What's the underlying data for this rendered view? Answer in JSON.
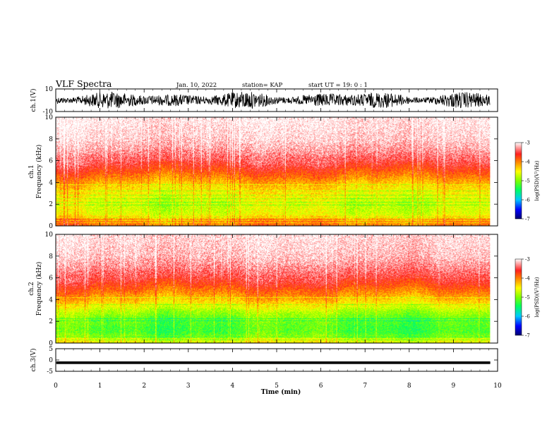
{
  "header": {
    "title": "VLF Spectra",
    "date": "Jan. 10, 2022",
    "station": "station= KAP",
    "start": "start  UT =   19: 0  : 1"
  },
  "chart_data": {
    "type": "heatmap",
    "x_axis": {
      "label": "Time  (min)",
      "range": [
        0,
        10
      ],
      "ticks": [
        0,
        1,
        2,
        3,
        4,
        5,
        6,
        7,
        8,
        9,
        10
      ],
      "data_end": 9.83
    },
    "panels": [
      {
        "id": "ch1_waveform",
        "type": "line",
        "ylabel": "ch.1(V)",
        "ylim": [
          -10,
          10
        ],
        "yticks": [
          10,
          -10
        ]
      },
      {
        "id": "ch1_spectrogram",
        "type": "heatmap",
        "title": "ch.1",
        "ylabel": "Frequency  (kHz)",
        "ylim": [
          0,
          10
        ],
        "yticks": [
          0,
          2,
          4,
          6,
          8,
          10
        ],
        "colorbar": {
          "label": "log(PSD)(V²/Hz)",
          "range": [
            -7,
            -3
          ],
          "ticks": [
            -3,
            -4,
            -5,
            -6,
            -7
          ]
        },
        "profile": [
          {
            "f": 0.0,
            "level": -4.0
          },
          {
            "f": 0.5,
            "level": -4.0
          },
          {
            "f": 1.0,
            "level": -4.6
          },
          {
            "f": 1.5,
            "level": -4.7
          },
          {
            "f": 2.0,
            "level": -4.7
          },
          {
            "f": 2.5,
            "level": -4.6
          },
          {
            "f": 3.0,
            "level": -4.5
          },
          {
            "f": 3.5,
            "level": -4.4
          },
          {
            "f": 4.0,
            "level": -4.2
          },
          {
            "f": 4.5,
            "level": -4.0
          },
          {
            "f": 5.0,
            "level": -3.8
          },
          {
            "f": 5.5,
            "level": -3.6
          },
          {
            "f": 6.0,
            "level": -3.45
          },
          {
            "f": 7.0,
            "level": -3.25
          },
          {
            "f": 8.0,
            "level": -3.1
          },
          {
            "f": 10.0,
            "level": -3.0
          }
        ],
        "lines": [
          0.3,
          0.55,
          0.8,
          1.95,
          2.2,
          2.55,
          2.85,
          3.25,
          3.8
        ]
      },
      {
        "id": "ch2_spectrogram",
        "type": "heatmap",
        "title": "ch.2",
        "ylabel": "Frequency  (kHz)",
        "ylim": [
          0,
          10
        ],
        "yticks": [
          0,
          2,
          4,
          6,
          8,
          10
        ],
        "colorbar": {
          "label": "log(PSD)(V²/Hz)",
          "range": [
            -7,
            -3
          ],
          "ticks": [
            -3,
            -4,
            -5,
            -6,
            -7
          ]
        },
        "profile": [
          {
            "f": 0.0,
            "level": -4.6
          },
          {
            "f": 0.3,
            "level": -4.6
          },
          {
            "f": 0.6,
            "level": -5.0
          },
          {
            "f": 1.0,
            "level": -5.2
          },
          {
            "f": 1.5,
            "level": -5.2
          },
          {
            "f": 2.0,
            "level": -5.1
          },
          {
            "f": 2.5,
            "level": -5.0
          },
          {
            "f": 3.0,
            "level": -4.8
          },
          {
            "f": 3.5,
            "level": -4.5
          },
          {
            "f": 4.0,
            "level": -4.25
          },
          {
            "f": 4.5,
            "level": -4.05
          },
          {
            "f": 5.0,
            "level": -3.85
          },
          {
            "f": 5.5,
            "level": -3.65
          },
          {
            "f": 6.0,
            "level": -3.5
          },
          {
            "f": 7.0,
            "level": -3.3
          },
          {
            "f": 8.0,
            "level": -3.15
          },
          {
            "f": 10.0,
            "level": -3.05
          }
        ],
        "lines": [
          0.3,
          0.6,
          2.05,
          2.3,
          3.6,
          4.25
        ]
      },
      {
        "id": "ch3_waveform",
        "type": "line",
        "ylabel": "ch.3(V)",
        "ylim": [
          -5,
          5
        ],
        "yticks": [
          5,
          0,
          -5
        ]
      }
    ]
  }
}
